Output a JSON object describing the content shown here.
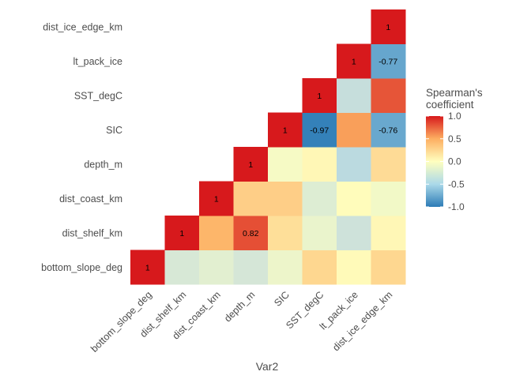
{
  "chart_data": {
    "type": "heatmap",
    "variables": [
      "bottom_slope_deg",
      "dist_shelf_km",
      "dist_coast_km",
      "depth_m",
      "SIC",
      "SST_degC",
      "lt_pack_ice",
      "dist_ice_edge_km"
    ],
    "xlabel": "Var2",
    "ylabel": "",
    "legend": {
      "title_lines": [
        "Spearman's",
        "coefficient"
      ],
      "ticks": [
        1.0,
        0.5,
        0.0,
        -0.5,
        -1.0
      ],
      "tick_labels": [
        "1.0",
        "0.5",
        "0.0",
        "-0.5",
        "-1.0"
      ],
      "range": [
        -1,
        1
      ],
      "position": "right",
      "colors": {
        "low": "#2166ac",
        "mid": "#ffffbf",
        "high": "#d7191c"
      }
    },
    "cells": [
      {
        "x": "bottom_slope_deg",
        "y": "bottom_slope_deg",
        "value": 1,
        "label": "1"
      },
      {
        "x": "dist_shelf_km",
        "y": "bottom_slope_deg",
        "value": -0.25,
        "label": ""
      },
      {
        "x": "dist_shelf_km",
        "y": "dist_shelf_km",
        "value": 1,
        "label": "1"
      },
      {
        "x": "dist_coast_km",
        "y": "bottom_slope_deg",
        "value": -0.17,
        "label": ""
      },
      {
        "x": "dist_coast_km",
        "y": "dist_shelf_km",
        "value": 0.45,
        "label": ""
      },
      {
        "x": "dist_coast_km",
        "y": "dist_coast_km",
        "value": 1,
        "label": "1"
      },
      {
        "x": "depth_m",
        "y": "bottom_slope_deg",
        "value": -0.27,
        "label": ""
      },
      {
        "x": "depth_m",
        "y": "dist_shelf_km",
        "value": 0.82,
        "label": "0.82"
      },
      {
        "x": "depth_m",
        "y": "dist_coast_km",
        "value": 0.3,
        "label": ""
      },
      {
        "x": "depth_m",
        "y": "depth_m",
        "value": 1,
        "label": "1"
      },
      {
        "x": "SIC",
        "y": "bottom_slope_deg",
        "value": -0.1,
        "label": ""
      },
      {
        "x": "SIC",
        "y": "dist_shelf_km",
        "value": 0.2,
        "label": ""
      },
      {
        "x": "SIC",
        "y": "dist_coast_km",
        "value": 0.3,
        "label": ""
      },
      {
        "x": "SIC",
        "y": "depth_m",
        "value": -0.05,
        "label": ""
      },
      {
        "x": "SIC",
        "y": "SIC",
        "value": 1,
        "label": "1"
      },
      {
        "x": "SST_degC",
        "y": "bottom_slope_deg",
        "value": 0.25,
        "label": ""
      },
      {
        "x": "SST_degC",
        "y": "dist_shelf_km",
        "value": -0.12,
        "label": ""
      },
      {
        "x": "SST_degC",
        "y": "dist_coast_km",
        "value": -0.2,
        "label": ""
      },
      {
        "x": "SST_degC",
        "y": "depth_m",
        "value": 0.05,
        "label": ""
      },
      {
        "x": "SST_degC",
        "y": "SIC",
        "value": -0.97,
        "label": "-0.97"
      },
      {
        "x": "SST_degC",
        "y": "SST_degC",
        "value": 1,
        "label": "1"
      },
      {
        "x": "lt_pack_ice",
        "y": "bottom_slope_deg",
        "value": 0.03,
        "label": ""
      },
      {
        "x": "lt_pack_ice",
        "y": "dist_shelf_km",
        "value": -0.32,
        "label": ""
      },
      {
        "x": "lt_pack_ice",
        "y": "dist_coast_km",
        "value": 0.02,
        "label": ""
      },
      {
        "x": "lt_pack_ice",
        "y": "depth_m",
        "value": -0.45,
        "label": ""
      },
      {
        "x": "lt_pack_ice",
        "y": "SIC",
        "value": 0.55,
        "label": ""
      },
      {
        "x": "lt_pack_ice",
        "y": "SST_degC",
        "value": -0.38,
        "label": ""
      },
      {
        "x": "lt_pack_ice",
        "y": "lt_pack_ice",
        "value": 1,
        "label": "1"
      },
      {
        "x": "dist_ice_edge_km",
        "y": "bottom_slope_deg",
        "value": 0.25,
        "label": ""
      },
      {
        "x": "dist_ice_edge_km",
        "y": "dist_shelf_km",
        "value": 0.05,
        "label": ""
      },
      {
        "x": "dist_ice_edge_km",
        "y": "dist_coast_km",
        "value": -0.07,
        "label": ""
      },
      {
        "x": "dist_ice_edge_km",
        "y": "depth_m",
        "value": 0.22,
        "label": ""
      },
      {
        "x": "dist_ice_edge_km",
        "y": "SIC",
        "value": -0.76,
        "label": "-0.76"
      },
      {
        "x": "dist_ice_edge_km",
        "y": "SST_degC",
        "value": 0.8,
        "label": ""
      },
      {
        "x": "dist_ice_edge_km",
        "y": "lt_pack_ice",
        "value": -0.77,
        "label": "-0.77"
      },
      {
        "x": "dist_ice_edge_km",
        "y": "dist_ice_edge_km",
        "value": 1,
        "label": "1"
      }
    ]
  }
}
